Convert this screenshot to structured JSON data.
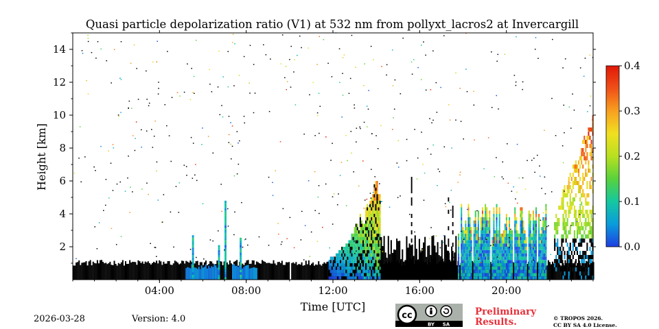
{
  "chart_data": {
    "type": "heatmap",
    "title": "Quasi particle depolarization ratio (V1) at 532 nm from pollyxt_lacros2 at Invercargill",
    "xlabel": "Time [UTC]",
    "ylabel": "Height [km]",
    "xlim": [
      0,
      24
    ],
    "ylim": [
      0,
      15
    ],
    "x_ticks": [
      "04:00",
      "08:00",
      "12:00",
      "16:00",
      "20:00"
    ],
    "x_tick_values": [
      4,
      8,
      12,
      16,
      20
    ],
    "y_ticks": [
      "2",
      "4",
      "6",
      "8",
      "10",
      "12",
      "14"
    ],
    "y_tick_values": [
      2,
      4,
      6,
      8,
      10,
      12,
      14
    ],
    "colorbar": {
      "range": [
        0.0,
        0.4
      ],
      "ticks": [
        "0.0",
        "0.1",
        "0.2",
        "0.3",
        "0.4"
      ],
      "tick_values": [
        0.0,
        0.1,
        0.2,
        0.3,
        0.4
      ],
      "colormap": [
        "#1f3fe0",
        "#0a9cdc",
        "#14c8a0",
        "#58d23c",
        "#b8e020",
        "#f0e020",
        "#f8a020",
        "#f05018",
        "#e01808"
      ]
    },
    "background_color": "#000000",
    "layers": [
      {
        "name": "boundary-layer",
        "t_start": 0.0,
        "t_end": 24.0,
        "top_km": 1.0,
        "value": "no-data"
      },
      {
        "name": "aerosol-low-morning",
        "t_start": 5.2,
        "t_end": 8.5,
        "top_km": 0.8,
        "value": 0.02
      },
      {
        "name": "clouds-midday",
        "t_start": 11.8,
        "t_end": 14.2,
        "top_km": 6.3,
        "value_range": [
          0.0,
          0.35
        ]
      },
      {
        "name": "clouds-afternoon",
        "t_start": 17.7,
        "t_end": 21.8,
        "top_km": 4.5,
        "value_range": [
          0.0,
          0.4
        ]
      },
      {
        "name": "elevated-layer-evening",
        "t_start": 22.2,
        "t_end": 24.0,
        "top_km": 10.0,
        "value_range": [
          0.1,
          0.4
        ]
      }
    ]
  },
  "footer": {
    "date": "2026-03-28",
    "version": "Version: 4.0",
    "preliminary_line1": "Preliminary",
    "preliminary_line2": "Results.",
    "copyright_line1": "© TROPOS 2026.",
    "copyright_line2": "CC BY SA 4.0 License.",
    "cc_label": "cc",
    "by_label": "BY",
    "sa_label": "SA"
  },
  "colors": {
    "preliminary": "#e8303a",
    "cc_badge_bg": "#aab0aa",
    "cc_badge_dark": "#000000"
  }
}
